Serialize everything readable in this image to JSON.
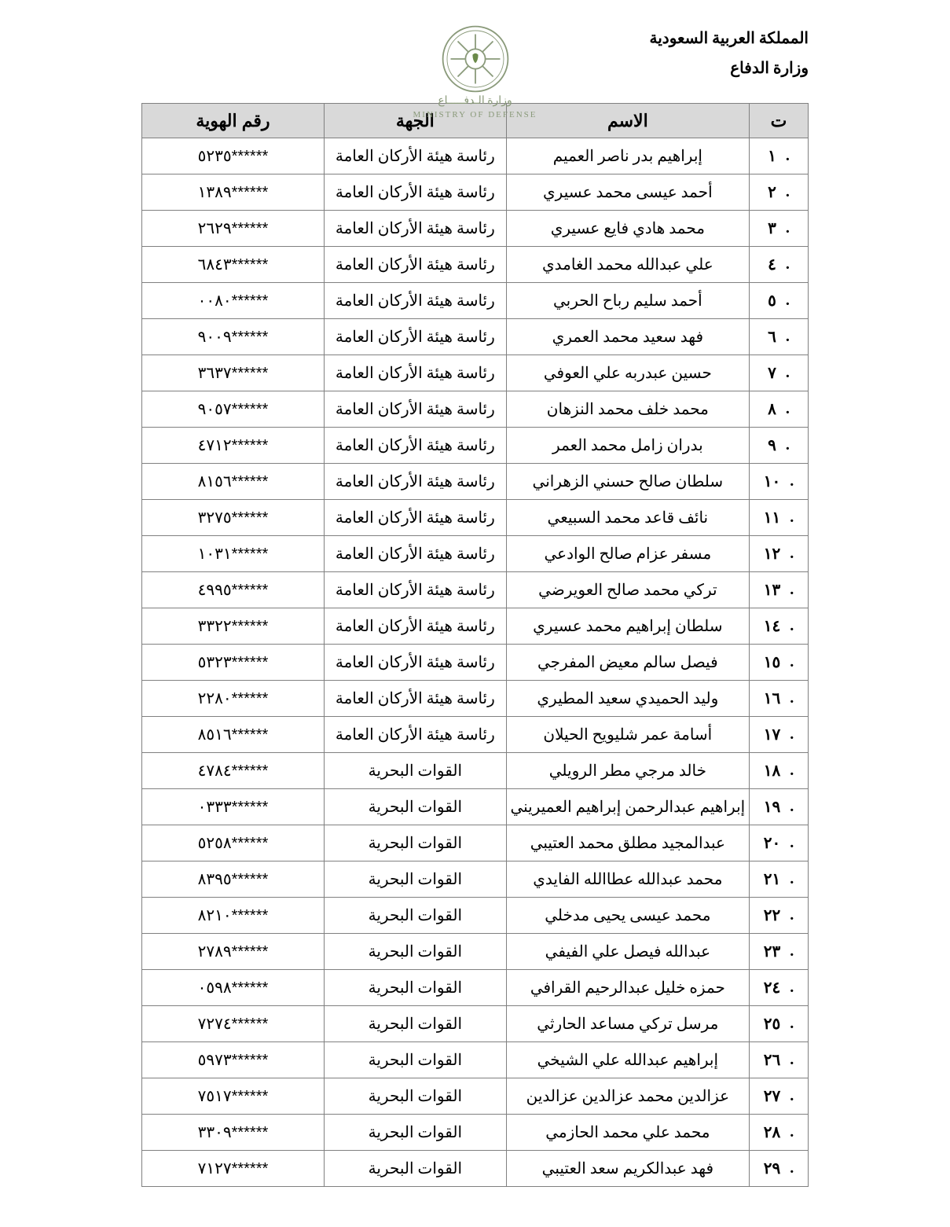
{
  "header": {
    "line1": "المملكة العربية السعودية",
    "line2": "وزارة الدفاع",
    "logo_caption_ar": "وزارة الـدفـــــاع",
    "logo_caption_en": "MINISTRY OF DEFENSE"
  },
  "table": {
    "columns": {
      "seq": "ت",
      "name": "الاسم",
      "dept": "الجهة",
      "id": "رقم الهوية"
    },
    "rows": [
      {
        "seq": "١",
        "name": "إبراهيم بدر ناصر العميم",
        "dept": "رئاسة هيئة الأركان العامة",
        "id": "٥٢٣٥******"
      },
      {
        "seq": "٢",
        "name": "أحمد عيسى محمد عسيري",
        "dept": "رئاسة هيئة الأركان العامة",
        "id": "١٣٨٩******"
      },
      {
        "seq": "٣",
        "name": "محمد هادي فايع عسيري",
        "dept": "رئاسة هيئة الأركان العامة",
        "id": "٢٦٢٩******"
      },
      {
        "seq": "٤",
        "name": "علي عبدالله محمد الغامدي",
        "dept": "رئاسة هيئة الأركان العامة",
        "id": "٦٨٤٣******"
      },
      {
        "seq": "٥",
        "name": "أحمد سليم رباح الحربي",
        "dept": "رئاسة هيئة الأركان العامة",
        "id": "٠٠٨٠******"
      },
      {
        "seq": "٦",
        "name": "فهد سعيد محمد العمري",
        "dept": "رئاسة هيئة الأركان العامة",
        "id": "٩٠٠٩******"
      },
      {
        "seq": "٧",
        "name": "حسين عبدربه علي العوفي",
        "dept": "رئاسة هيئة الأركان العامة",
        "id": "٣٦٣٧******"
      },
      {
        "seq": "٨",
        "name": "محمد خلف محمد النزهان",
        "dept": "رئاسة هيئة الأركان العامة",
        "id": "٩٠٥٧******"
      },
      {
        "seq": "٩",
        "name": "بدران زامل محمد العمر",
        "dept": "رئاسة هيئة الأركان العامة",
        "id": "٤٧١٢******"
      },
      {
        "seq": "١٠",
        "name": "سلطان صالح حسني الزهراني",
        "dept": "رئاسة هيئة الأركان العامة",
        "id": "٨١٥٦******"
      },
      {
        "seq": "١١",
        "name": "نائف قاعد محمد السبيعي",
        "dept": "رئاسة هيئة الأركان العامة",
        "id": "٣٢٧٥******"
      },
      {
        "seq": "١٢",
        "name": "مسفر عزام صالح الوادعي",
        "dept": "رئاسة هيئة الأركان العامة",
        "id": "١٠٣١******"
      },
      {
        "seq": "١٣",
        "name": "تركي محمد صالح العويرضي",
        "dept": "رئاسة هيئة الأركان العامة",
        "id": "٤٩٩٥******"
      },
      {
        "seq": "١٤",
        "name": "سلطان إبراهيم محمد عسيري",
        "dept": "رئاسة هيئة الأركان العامة",
        "id": "٣٣٢٢******"
      },
      {
        "seq": "١٥",
        "name": "فيصل سالم معيض المفرجي",
        "dept": "رئاسة هيئة الأركان العامة",
        "id": "٥٣٢٣******"
      },
      {
        "seq": "١٦",
        "name": "وليد الحميدي سعيد المطيري",
        "dept": "رئاسة هيئة الأركان العامة",
        "id": "٢٢٨٠******"
      },
      {
        "seq": "١٧",
        "name": "أسامة عمر شليويح الحيلان",
        "dept": "رئاسة هيئة الأركان العامة",
        "id": "٨٥١٦******"
      },
      {
        "seq": "١٨",
        "name": "خالد مرجي مطر الرويلي",
        "dept": "القوات البحرية",
        "id": "٤٧٨٤******"
      },
      {
        "seq": "١٩",
        "name": "إبراهيم عبدالرحمن إبراهيم العميريني",
        "dept": "القوات البحرية",
        "id": "٠٣٣٣******"
      },
      {
        "seq": "٢٠",
        "name": "عبدالمجيد مطلق محمد العتيبي",
        "dept": "القوات البحرية",
        "id": "٥٢٥٨******"
      },
      {
        "seq": "٢١",
        "name": "محمد عبدالله عطاالله الفايدي",
        "dept": "القوات البحرية",
        "id": "٨٣٩٥******"
      },
      {
        "seq": "٢٢",
        "name": "محمد عيسى يحيى مدخلي",
        "dept": "القوات البحرية",
        "id": "٨٢١٠******"
      },
      {
        "seq": "٢٣",
        "name": "عبدالله فيصل علي الفيفي",
        "dept": "القوات البحرية",
        "id": "٢٧٨٩******"
      },
      {
        "seq": "٢٤",
        "name": "حمزه خليل عبدالرحيم القرافي",
        "dept": "القوات البحرية",
        "id": "٠٥٩٨******"
      },
      {
        "seq": "٢٥",
        "name": "مرسل تركي مساعد الحارثي",
        "dept": "القوات البحرية",
        "id": "٧٢٧٤******"
      },
      {
        "seq": "٢٦",
        "name": "إبراهيم عبدالله علي الشيخي",
        "dept": "القوات البحرية",
        "id": "٥٩٧٣******"
      },
      {
        "seq": "٢٧",
        "name": "عزالدين محمد عزالدين عزالدين",
        "dept": "القوات البحرية",
        "id": "٧٥١٧******"
      },
      {
        "seq": "٢٨",
        "name": "محمد علي محمد الحازمي",
        "dept": "القوات البحرية",
        "id": "٣٣٠٩******"
      },
      {
        "seq": "٢٩",
        "name": "فهد عبدالكريم سعد العتيبي",
        "dept": "القوات البحرية",
        "id": "٧١٢٧******"
      }
    ]
  },
  "style": {
    "header_bg": "#d9d9d9",
    "border_color": "#808080",
    "text_color": "#000000",
    "page_bg": "#ffffff"
  }
}
